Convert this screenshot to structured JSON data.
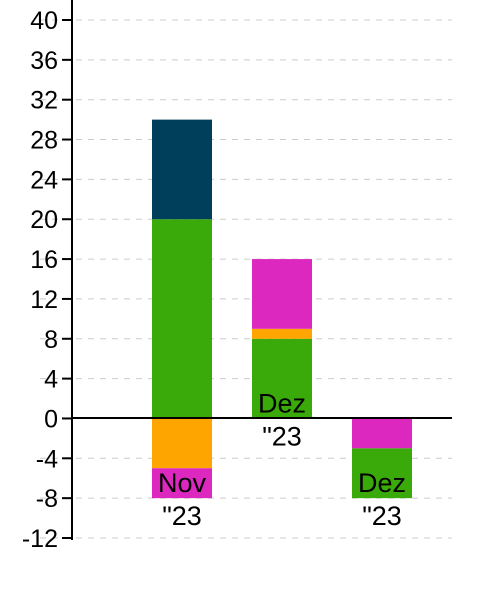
{
  "chart_data": {
    "type": "bar",
    "stacked": true,
    "categories": [
      {
        "line1": "Nov",
        "line2": "\"23"
      },
      {
        "line1": "Dez",
        "line2": "\"23"
      },
      {
        "line1": "Dez",
        "line2": "\"23"
      }
    ],
    "series": [
      {
        "color": "#3aaa0b",
        "values": [
          20,
          8,
          0
        ]
      },
      {
        "color": "#ffa500",
        "values": [
          0,
          1,
          0
        ]
      },
      {
        "color": "#dc28be",
        "values": [
          0,
          7,
          0
        ]
      },
      {
        "color": "#003f5c",
        "values": [
          10,
          0,
          0
        ]
      },
      {
        "color": "#ffa500",
        "values": [
          -5,
          0,
          0
        ]
      },
      {
        "color": "#dc28be",
        "values": [
          -3,
          0,
          -3
        ]
      },
      {
        "color": "#3aaa0b",
        "values": [
          0,
          0,
          -5
        ]
      }
    ],
    "ylim": [
      -12,
      40
    ],
    "yticks": [
      "40",
      "36",
      "32",
      "28",
      "24",
      "20",
      "16",
      "12",
      "8",
      "4",
      "0",
      "-4",
      "-8",
      "-12"
    ],
    "grid": true,
    "legend": false
  }
}
